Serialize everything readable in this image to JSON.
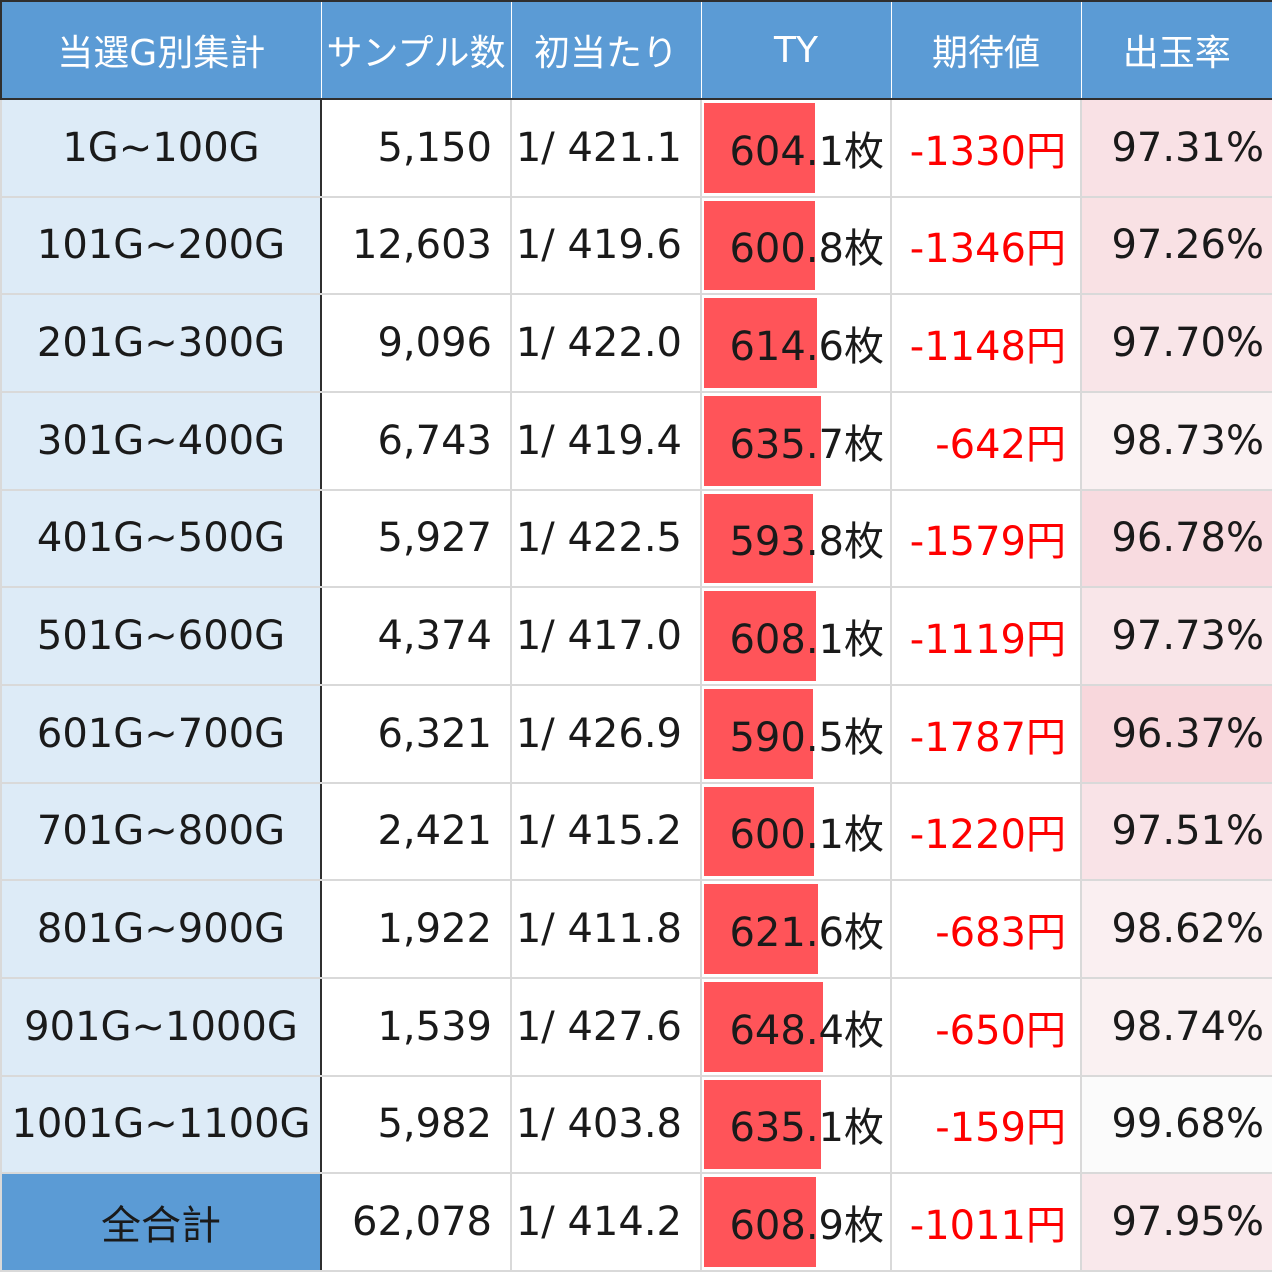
{
  "chart_data": {
    "type": "table",
    "columns": [
      "当選G別集計",
      "サンプル数",
      "初当たり",
      "TY",
      "期待値",
      "出玉率"
    ],
    "rows": [
      {
        "range": "1G~100G",
        "samples": "5,150",
        "first_hit": "1/ 421.1",
        "ty": 604.1,
        "ty_text": "604.1枚",
        "expected": "-1330円",
        "rate": "97.31%",
        "rate_value": 97.31
      },
      {
        "range": "101G~200G",
        "samples": "12,603",
        "first_hit": "1/ 419.6",
        "ty": 600.8,
        "ty_text": "600.8枚",
        "expected": "-1346円",
        "rate": "97.26%",
        "rate_value": 97.26
      },
      {
        "range": "201G~300G",
        "samples": "9,096",
        "first_hit": "1/ 422.0",
        "ty": 614.6,
        "ty_text": "614.6枚",
        "expected": "-1148円",
        "rate": "97.70%",
        "rate_value": 97.7
      },
      {
        "range": "301G~400G",
        "samples": "6,743",
        "first_hit": "1/ 419.4",
        "ty": 635.7,
        "ty_text": "635.7枚",
        "expected": "-642円",
        "rate": "98.73%",
        "rate_value": 98.73
      },
      {
        "range": "401G~500G",
        "samples": "5,927",
        "first_hit": "1/ 422.5",
        "ty": 593.8,
        "ty_text": "593.8枚",
        "expected": "-1579円",
        "rate": "96.78%",
        "rate_value": 96.78
      },
      {
        "range": "501G~600G",
        "samples": "4,374",
        "first_hit": "1/ 417.0",
        "ty": 608.1,
        "ty_text": "608.1枚",
        "expected": "-1119円",
        "rate": "97.73%",
        "rate_value": 97.73
      },
      {
        "range": "601G~700G",
        "samples": "6,321",
        "first_hit": "1/ 426.9",
        "ty": 590.5,
        "ty_text": "590.5枚",
        "expected": "-1787円",
        "rate": "96.37%",
        "rate_value": 96.37
      },
      {
        "range": "701G~800G",
        "samples": "2,421",
        "first_hit": "1/ 415.2",
        "ty": 600.1,
        "ty_text": "600.1枚",
        "expected": "-1220円",
        "rate": "97.51%",
        "rate_value": 97.51
      },
      {
        "range": "801G~900G",
        "samples": "1,922",
        "first_hit": "1/ 411.8",
        "ty": 621.6,
        "ty_text": "621.6枚",
        "expected": "-683円",
        "rate": "98.62%",
        "rate_value": 98.62
      },
      {
        "range": "901G~1000G",
        "samples": "1,539",
        "first_hit": "1/ 427.6",
        "ty": 648.4,
        "ty_text": "648.4枚",
        "expected": "-650円",
        "rate": "98.74%",
        "rate_value": 98.74
      },
      {
        "range": "1001G~1100G",
        "samples": "5,982",
        "first_hit": "1/ 403.8",
        "ty": 635.1,
        "ty_text": "635.1枚",
        "expected": "-159円",
        "rate": "99.68%",
        "rate_value": 99.68
      }
    ],
    "total": {
      "range": "全合計",
      "samples": "62,078",
      "first_hit": "1/ 414.2",
      "ty": 608.9,
      "ty_text": "608.9枚",
      "expected": "-1011円",
      "rate": "97.95%",
      "rate_value": 97.95
    },
    "ty_bar_max": 1000,
    "colors": {
      "header": "#5b9bd5",
      "label_bg": "#ddebf7",
      "ty_bar": "#ff5459",
      "expected_text": "#ff0000",
      "rate_scale_low": "#f8d7dc",
      "rate_scale_high": "#fbfbfb"
    }
  }
}
